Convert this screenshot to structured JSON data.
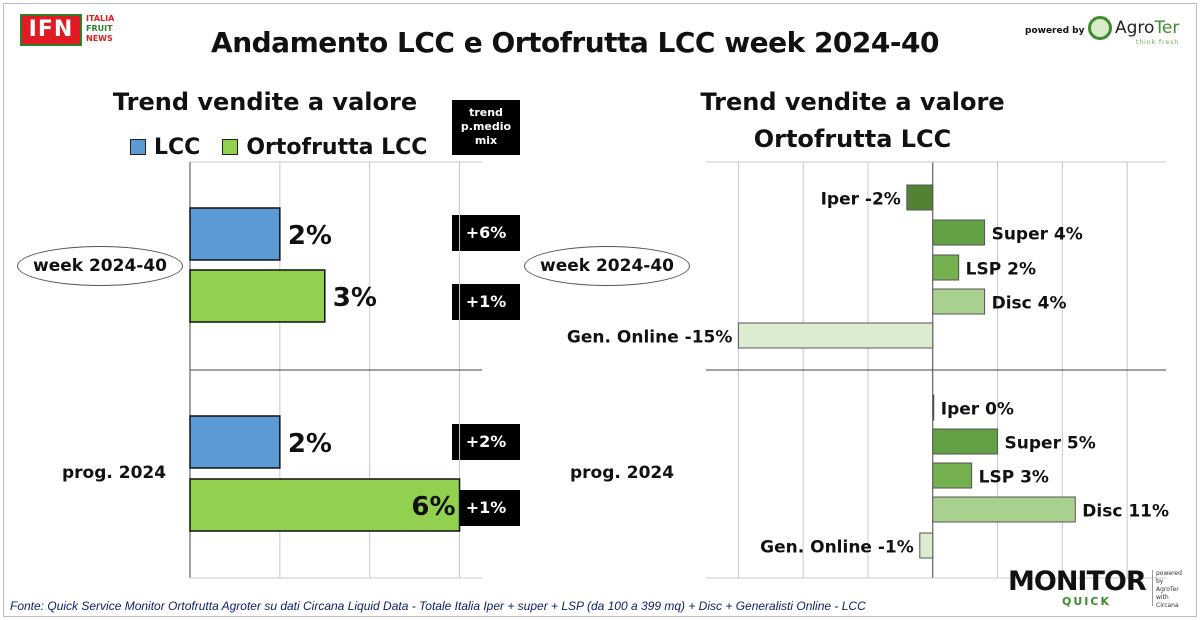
{
  "header": {
    "logo": {
      "main": "IFN",
      "lines": [
        "ITALIA",
        "FRUIT",
        "NEWS"
      ]
    },
    "title": "Andamento LCC e Ortofrutta LCC week 2024-40",
    "powered_by": "powered by",
    "agroter": {
      "name_a": "Agro",
      "name_b": "Ter",
      "tagline": "think fresh"
    }
  },
  "left_panel": {
    "title": "Trend vendite a valore",
    "legend": [
      {
        "label": "LCC",
        "color": "#5b9bd5"
      },
      {
        "label": "Ortofrutta LCC",
        "color": "#92d050"
      }
    ],
    "trend_header": [
      "trend",
      "p.medio",
      "mix"
    ],
    "trend_values": [
      "+6%",
      "+1%",
      "+2%",
      "+1%"
    ],
    "period_labels": [
      "week 2024-40",
      "prog. 2024"
    ]
  },
  "right_panel": {
    "title_line1": "Trend vendite a valore",
    "title_line2": "Ortofrutta LCC",
    "period_labels": [
      "week 2024-40",
      "prog. 2024"
    ]
  },
  "chart_data": [
    {
      "type": "bar",
      "orientation": "horizontal",
      "title": "Trend vendite a valore",
      "categories": [
        "week 2024-40",
        "prog. 2024"
      ],
      "series": [
        {
          "name": "LCC",
          "values": [
            2,
            2
          ],
          "labels": [
            "2%",
            "2%"
          ],
          "color": "#5b9bd5"
        },
        {
          "name": "Ortofrutta LCC",
          "values": [
            3,
            6
          ],
          "labels": [
            "3%",
            "6%"
          ],
          "color": "#92d050"
        }
      ],
      "xlim": [
        0,
        6.5
      ],
      "unit": "%",
      "grid": true
    },
    {
      "type": "bar",
      "orientation": "horizontal",
      "title": "Trend vendite a valore Ortofrutta LCC",
      "groups": [
        {
          "name": "week 2024-40",
          "bars": [
            {
              "label": "Iper -2%",
              "value": -2,
              "color": "#548235"
            },
            {
              "label": "Super 4%",
              "value": 4,
              "color": "#62a143"
            },
            {
              "label": "LSP 2%",
              "value": 2,
              "color": "#74b04d"
            },
            {
              "label": "Disc 4%",
              "value": 4,
              "color": "#a9d08e"
            },
            {
              "label": "Gen. Online -15%",
              "value": -15,
              "color": "#dcecd0"
            }
          ]
        },
        {
          "name": "prog. 2024",
          "bars": [
            {
              "label": "Iper 0%",
              "value": 0,
              "color": "#548235"
            },
            {
              "label": "Super 5%",
              "value": 5,
              "color": "#62a143"
            },
            {
              "label": "LSP 3%",
              "value": 3,
              "color": "#74b04d"
            },
            {
              "label": "Disc 11%",
              "value": 11,
              "color": "#a9d08e"
            },
            {
              "label": "Gen. Online -1%",
              "value": -1,
              "color": "#dcecd0"
            }
          ]
        }
      ],
      "xlim": [
        -17.5,
        18
      ],
      "unit": "%",
      "grid": true
    }
  ],
  "footer": {
    "source": "Fonte: Quick Service Monitor Ortofrutta Agroter su dati Circana Liquid Data - Totale Italia Iper + super + LSP (da 100 a 399 mq) + Disc + Generalisti Online - LCC",
    "monitor_a": "MONITOR",
    "monitor_b": "QUICK",
    "monitor_side": [
      "powered by",
      "AgroTer",
      "with",
      "Circana"
    ]
  }
}
